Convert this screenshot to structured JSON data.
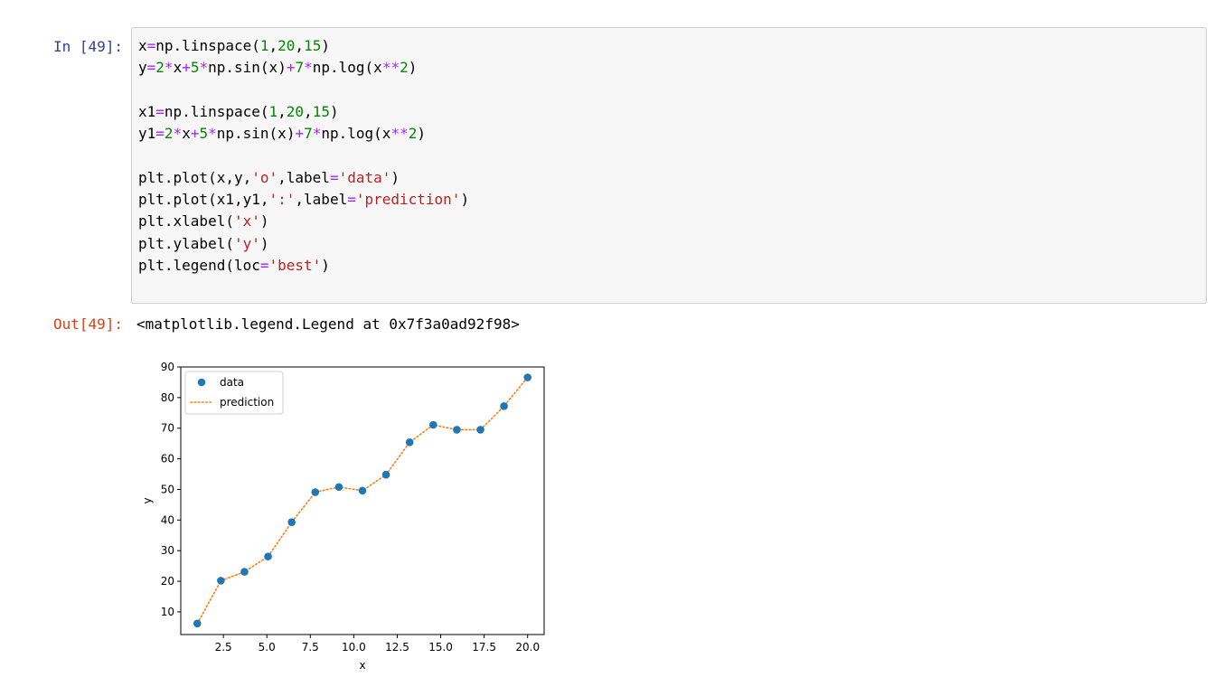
{
  "cells": {
    "input_prompt": "In [49]:",
    "output_prompt": "Out[49]:",
    "code_lines": [
      [
        {
          "t": "x"
        },
        {
          "t": "=",
          "c": "op"
        },
        {
          "t": "np.linspace("
        },
        {
          "t": "1",
          "c": "num"
        },
        {
          "t": ","
        },
        {
          "t": "20",
          "c": "num"
        },
        {
          "t": ","
        },
        {
          "t": "15",
          "c": "num"
        },
        {
          "t": ")"
        }
      ],
      [
        {
          "t": "y"
        },
        {
          "t": "=",
          "c": "op"
        },
        {
          "t": "2",
          "c": "num"
        },
        {
          "t": "*",
          "c": "op"
        },
        {
          "t": "x"
        },
        {
          "t": "+",
          "c": "op"
        },
        {
          "t": "5",
          "c": "num"
        },
        {
          "t": "*",
          "c": "op"
        },
        {
          "t": "np.sin(x)"
        },
        {
          "t": "+",
          "c": "op"
        },
        {
          "t": "7",
          "c": "num"
        },
        {
          "t": "*",
          "c": "op"
        },
        {
          "t": "np.log(x"
        },
        {
          "t": "**",
          "c": "op"
        },
        {
          "t": "2",
          "c": "num"
        },
        {
          "t": ")"
        }
      ],
      [],
      [
        {
          "t": "x1"
        },
        {
          "t": "=",
          "c": "op"
        },
        {
          "t": "np.linspace("
        },
        {
          "t": "1",
          "c": "num"
        },
        {
          "t": ","
        },
        {
          "t": "20",
          "c": "num"
        },
        {
          "t": ","
        },
        {
          "t": "15",
          "c": "num"
        },
        {
          "t": ")"
        }
      ],
      [
        {
          "t": "y1"
        },
        {
          "t": "=",
          "c": "op"
        },
        {
          "t": "2",
          "c": "num"
        },
        {
          "t": "*",
          "c": "op"
        },
        {
          "t": "x"
        },
        {
          "t": "+",
          "c": "op"
        },
        {
          "t": "5",
          "c": "num"
        },
        {
          "t": "*",
          "c": "op"
        },
        {
          "t": "np.sin(x)"
        },
        {
          "t": "+",
          "c": "op"
        },
        {
          "t": "7",
          "c": "num"
        },
        {
          "t": "*",
          "c": "op"
        },
        {
          "t": "np.log(x"
        },
        {
          "t": "**",
          "c": "op"
        },
        {
          "t": "2",
          "c": "num"
        },
        {
          "t": ")"
        }
      ],
      [],
      [
        {
          "t": "plt.plot(x,y,"
        },
        {
          "t": "'o'",
          "c": "str"
        },
        {
          "t": ",label"
        },
        {
          "t": "=",
          "c": "op"
        },
        {
          "t": "'data'",
          "c": "str"
        },
        {
          "t": ")"
        }
      ],
      [
        {
          "t": "plt.plot(x1,y1,"
        },
        {
          "t": "':'",
          "c": "str"
        },
        {
          "t": ",label"
        },
        {
          "t": "=",
          "c": "op"
        },
        {
          "t": "'prediction'",
          "c": "str"
        },
        {
          "t": ")"
        }
      ],
      [
        {
          "t": "plt.xlabel("
        },
        {
          "t": "'x'",
          "c": "str"
        },
        {
          "t": ")"
        }
      ],
      [
        {
          "t": "plt.ylabel("
        },
        {
          "t": "'y'",
          "c": "str"
        },
        {
          "t": ")"
        }
      ],
      [
        {
          "t": "plt.legend(loc"
        },
        {
          "t": "=",
          "c": "op"
        },
        {
          "t": "'best'",
          "c": "str"
        },
        {
          "t": ")"
        }
      ]
    ],
    "output_text": "<matplotlib.legend.Legend at 0x7f3a0ad92f98>"
  },
  "colors": {
    "data_marker": "#1f77b4",
    "prediction_line": "#ff7f0e"
  },
  "chart_data": {
    "type": "line",
    "title": "",
    "xlabel": "x",
    "ylabel": "y",
    "xlim": [
      0.05,
      20.95
    ],
    "ylim": [
      2.6,
      90
    ],
    "x_ticks": [
      "2.5",
      "5.0",
      "7.5",
      "10.0",
      "12.5",
      "15.0",
      "17.5",
      "20.0"
    ],
    "x_tick_values": [
      2.5,
      5.0,
      7.5,
      10.0,
      12.5,
      15.0,
      17.5,
      20.0
    ],
    "y_ticks": [
      "10",
      "20",
      "30",
      "40",
      "50",
      "60",
      "70",
      "80",
      "90"
    ],
    "y_tick_values": [
      10,
      20,
      30,
      40,
      50,
      60,
      70,
      80,
      90
    ],
    "grid": false,
    "legend_position": "top-left",
    "x": [
      1.0,
      2.357,
      3.714,
      5.071,
      6.429,
      7.786,
      9.143,
      10.5,
      11.857,
      13.214,
      14.571,
      15.929,
      17.286,
      18.643,
      20.0
    ],
    "series": [
      {
        "name": "data",
        "style": "marker-o",
        "values": [
          6.2,
          20.2,
          23.1,
          28.1,
          39.3,
          49.1,
          50.8,
          49.6,
          54.8,
          65.4,
          71.1,
          69.5,
          69.5,
          77.2,
          86.6
        ]
      },
      {
        "name": "prediction",
        "style": "dotted-line",
        "values": [
          6.2,
          20.2,
          23.1,
          28.1,
          39.3,
          49.1,
          50.8,
          49.6,
          54.8,
          65.4,
          71.1,
          69.5,
          69.5,
          77.2,
          86.6
        ]
      }
    ]
  }
}
